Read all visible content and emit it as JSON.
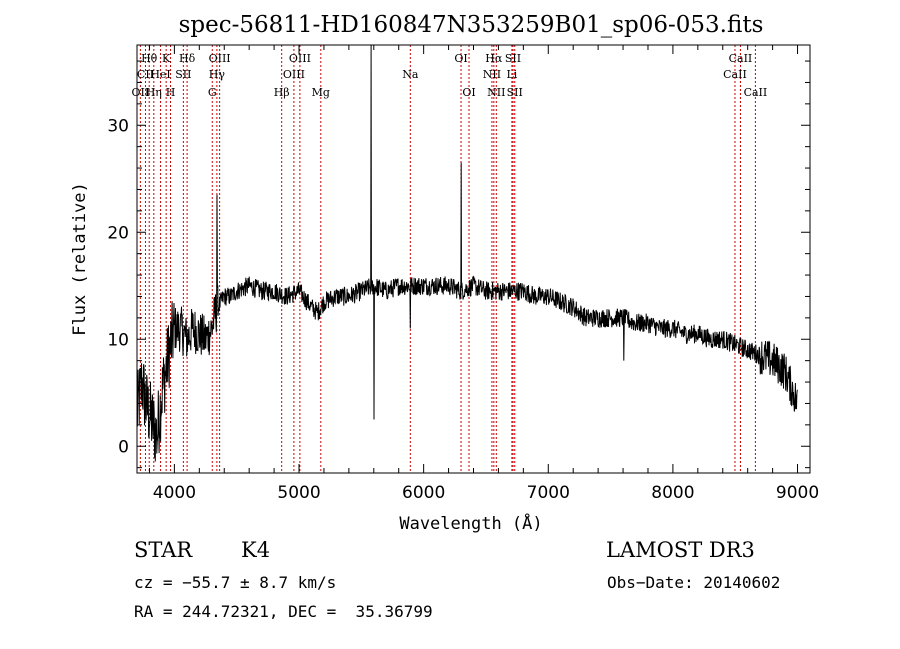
{
  "chart_data": {
    "type": "line",
    "title": "spec-56811-HD160847N353259B01_sp06-053.fits",
    "xlabel": "Wavelength (Å)",
    "ylabel": "Flux (relative)",
    "xlim": [
      3700,
      9100
    ],
    "ylim": [
      -2.5,
      37.5
    ],
    "xticks": [
      4000,
      5000,
      6000,
      7000,
      8000,
      9000
    ],
    "yticks": [
      0,
      10,
      20,
      30
    ],
    "grid": false,
    "series_color": "#000000",
    "line_marker_color": "#cc0000",
    "spectrum": {
      "x": [
        3700,
        3740,
        3770,
        3800,
        3830,
        3860,
        3880,
        3900,
        3930,
        3960,
        4000,
        4050,
        4100,
        4150,
        4200,
        4250,
        4300,
        4330,
        4350,
        4400,
        4450,
        4500,
        4600,
        4700,
        4800,
        4900,
        5000,
        5100,
        5150,
        5200,
        5300,
        5400,
        5500,
        5600,
        5700,
        5800,
        5900,
        6000,
        6100,
        6200,
        6300,
        6400,
        6500,
        6600,
        6700,
        6800,
        6900,
        7000,
        7100,
        7200,
        7300,
        7400,
        7500,
        7600,
        7700,
        7800,
        7900,
        8000,
        8100,
        8200,
        8300,
        8400,
        8500,
        8600,
        8700,
        8800,
        8900,
        8950,
        9000
      ],
      "y": [
        3,
        6,
        4,
        3,
        2,
        1,
        3,
        5,
        7,
        9,
        11,
        11,
        10,
        11,
        10.5,
        10,
        11,
        12.5,
        13,
        14,
        14,
        14.5,
        15,
        14.5,
        14.5,
        14,
        14.5,
        13,
        12.5,
        13.5,
        14,
        14,
        14.5,
        15,
        14.5,
        15,
        15,
        15,
        15,
        15,
        14.5,
        15,
        14.5,
        14.5,
        14.5,
        14.5,
        14,
        14,
        13.5,
        13,
        12,
        12,
        12,
        12,
        11.5,
        11.5,
        11,
        11,
        10.5,
        10.5,
        10,
        10,
        9.5,
        9,
        8.5,
        8,
        7,
        5.5,
        4
      ]
    },
    "spikes": [
      {
        "x": 4340,
        "y": 23.5
      },
      {
        "x": 5577,
        "y": 37.5
      },
      {
        "x": 5600,
        "y": 2.5
      },
      {
        "x": 5893,
        "y": 11
      },
      {
        "x": 6300,
        "y": 26.5
      },
      {
        "x": 7605,
        "y": 8
      }
    ],
    "lines": [
      {
        "label": "Hθ",
        "x": 3798,
        "row": 0
      },
      {
        "label": "CII",
        "x": 3768,
        "row": 1
      },
      {
        "label": "OII",
        "x": 3727,
        "row": 2
      },
      {
        "label": "Hη",
        "x": 3835,
        "row": 2
      },
      {
        "label": "HeI",
        "x": 3889,
        "row": 1
      },
      {
        "label": "K",
        "x": 3934,
        "row": 0
      },
      {
        "label": "H",
        "x": 3969,
        "row": 2
      },
      {
        "label": "SII",
        "x": 4072,
        "row": 1
      },
      {
        "label": "Hδ",
        "x": 4102,
        "row": 0
      },
      {
        "label": "G",
        "x": 4304,
        "row": 2
      },
      {
        "label": "OIII",
        "x": 4363,
        "row": 0
      },
      {
        "label": "Hγ",
        "x": 4341,
        "row": 1
      },
      {
        "label": "Hβ",
        "x": 4861,
        "row": 2
      },
      {
        "label": "OIII",
        "x": 5007,
        "row": 0
      },
      {
        "label": "OIII",
        "x": 4959,
        "row": 1
      },
      {
        "label": "Mg",
        "x": 5175,
        "row": 2
      },
      {
        "label": "Na",
        "x": 5893,
        "row": 1
      },
      {
        "label": "OI",
        "x": 6300,
        "row": 0
      },
      {
        "label": "OI",
        "x": 6364,
        "row": 2
      },
      {
        "label": "Hα",
        "x": 6563,
        "row": 0
      },
      {
        "label": "NII",
        "x": 6548,
        "row": 1
      },
      {
        "label": "NII",
        "x": 6583,
        "row": 2
      },
      {
        "label": "SII",
        "x": 6717,
        "row": 0
      },
      {
        "label": "Li",
        "x": 6708,
        "row": 1
      },
      {
        "label": "SII",
        "x": 6731,
        "row": 2
      },
      {
        "label": "CaII",
        "x": 8542,
        "row": 0
      },
      {
        "label": "CaII",
        "x": 8498,
        "row": 1
      },
      {
        "label": "CaII",
        "x": 8662,
        "row": 2
      }
    ]
  },
  "info": {
    "object_type": "STAR",
    "subclass": "K4",
    "survey": "LAMOST DR3",
    "velocity": "cz = −55.7 ± 8.7 km/s",
    "obs_date": "Obs−Date: 20140602",
    "coords": "RA = 244.72321, DEC =  35.36799"
  }
}
